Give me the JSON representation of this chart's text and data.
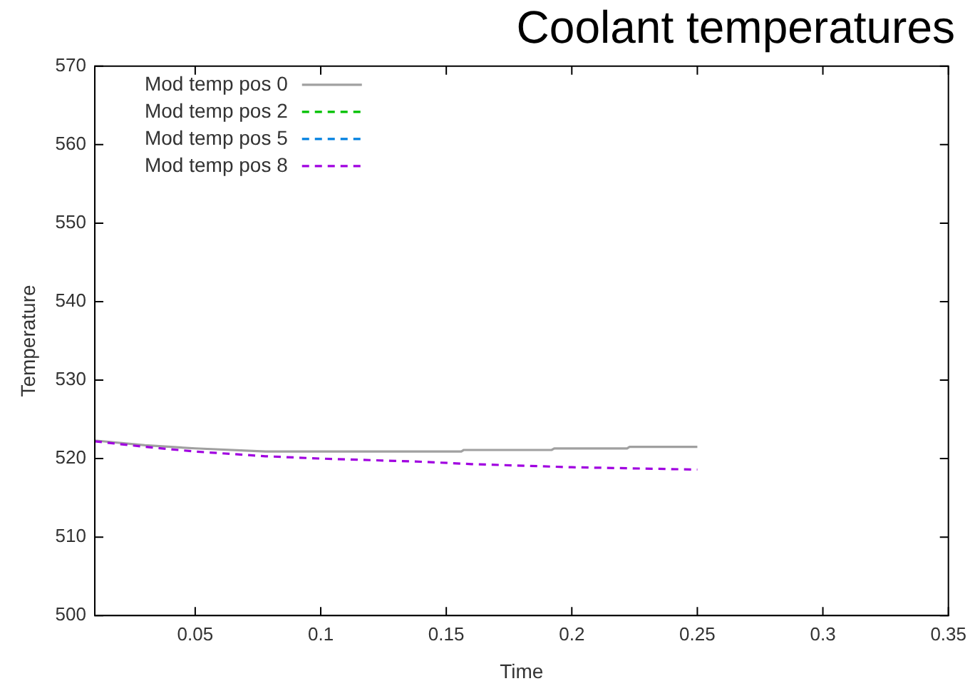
{
  "chart_data": {
    "type": "line",
    "title": "Coolant temperatures",
    "xlabel": "Time",
    "ylabel": "Temperature",
    "xlim": [
      0.01,
      0.35
    ],
    "xticks": [
      0.05,
      0.1,
      0.15,
      0.2,
      0.25,
      0.3,
      0.35
    ],
    "ylim": [
      500,
      570
    ],
    "yticks": [
      500,
      510,
      520,
      530,
      540,
      550,
      560,
      570
    ],
    "grid": false,
    "legend": "top left",
    "marker": "none",
    "series": [
      {
        "name": "Mod temp pos 0",
        "color": "#a0a0a0",
        "line_style": "solid",
        "x": [
          0.01,
          0.03,
          0.05,
          0.078,
          0.156,
          0.157,
          0.192,
          0.193,
          0.222,
          0.223,
          0.25
        ],
        "values": [
          522.3,
          521.7,
          521.3,
          520.9,
          520.9,
          521.1,
          521.1,
          521.3,
          521.3,
          521.5,
          521.5
        ]
      },
      {
        "name": "Mod temp pos 2",
        "color": "#00c000",
        "line_style": "dashed"
      },
      {
        "name": "Mod temp pos 5",
        "color": "#0080e0",
        "line_style": "dashed"
      },
      {
        "name": "Mod temp pos 8",
        "color": "#a000e0",
        "line_style": "dashed",
        "x": [
          0.01,
          0.03,
          0.05,
          0.078,
          0.1,
          0.14,
          0.16,
          0.2,
          0.25
        ],
        "values": [
          522.2,
          521.5,
          520.9,
          520.3,
          520.0,
          519.6,
          519.3,
          518.9,
          518.6
        ]
      }
    ]
  }
}
